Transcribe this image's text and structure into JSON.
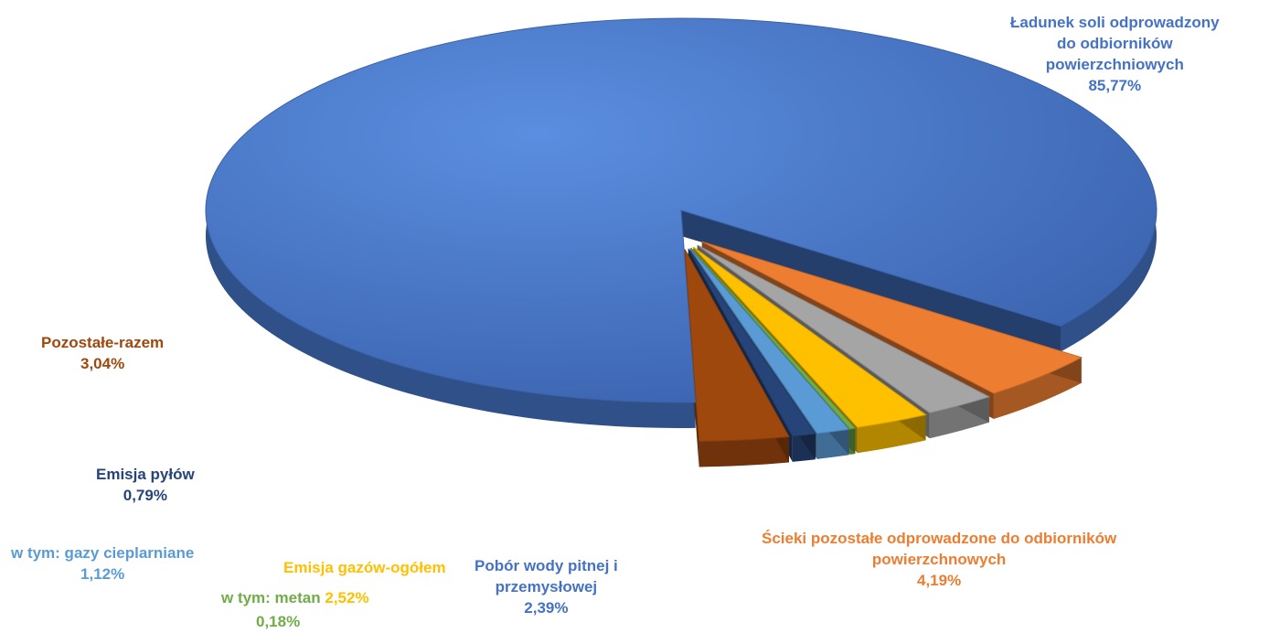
{
  "chart_data": {
    "type": "pie",
    "style": "3d-exploded",
    "title": "",
    "unit": "%",
    "slices": [
      {
        "name": "Ładunek soli odprowadzony do odbiorników powierzchniowych",
        "value": 85.77,
        "label": "85,77%",
        "color": "#4472C4"
      },
      {
        "name": "Ścieki pozostałe odprowadzone do odbiorników powierzchnowych",
        "value": 4.19,
        "label": "4,19%",
        "color": "#ED7D31"
      },
      {
        "name": "Pobór wody pitnej i przemysłowej",
        "value": 2.39,
        "label": "2,39%",
        "color": "#A5A5A5"
      },
      {
        "name": "Emisja gazów-ogółem",
        "value": 2.52,
        "label": "2,52%",
        "color": "#FFC000"
      },
      {
        "name": "w tym: metan",
        "value": 0.18,
        "label": "0,18%",
        "color": "#70AD47"
      },
      {
        "name": "w tym: gazy cieplarniane",
        "value": 1.12,
        "label": "1,12%",
        "color": "#5B9BD5"
      },
      {
        "name": "Emisja pyłów",
        "value": 0.79,
        "label": "0,79%",
        "color": "#264478"
      },
      {
        "name": "Pozostałe-razem",
        "value": 3.04,
        "label": "3,04%",
        "color": "#9E480E"
      }
    ]
  },
  "labels": {
    "salt": {
      "line1": "Ładunek soli odprowadzony",
      "line2": "do odbiorników",
      "line3": "powierzchniowych",
      "pct": "85,77%"
    },
    "wastewater": {
      "line1": "Ścieki pozostałe odprowadzone do odbiorników",
      "line2": "powierzchnowych",
      "pct": "4,19%"
    },
    "water": {
      "line1": "Pobór wody pitnej i",
      "line2": "przemysłowej",
      "pct": "2,39%"
    },
    "gases": {
      "line1": "Emisja gazów-ogółem",
      "pct": "2,52%"
    },
    "methane": {
      "line1": "w tym: metan",
      "pct": "0,18%"
    },
    "greenhouse": {
      "line1": "w tym: gazy cieplarniane",
      "pct": "1,12%"
    },
    "dust": {
      "line1": "Emisja pyłów",
      "pct": "0,79%"
    },
    "other": {
      "line1": "Pozostałe-razem",
      "pct": "3,04%"
    }
  }
}
